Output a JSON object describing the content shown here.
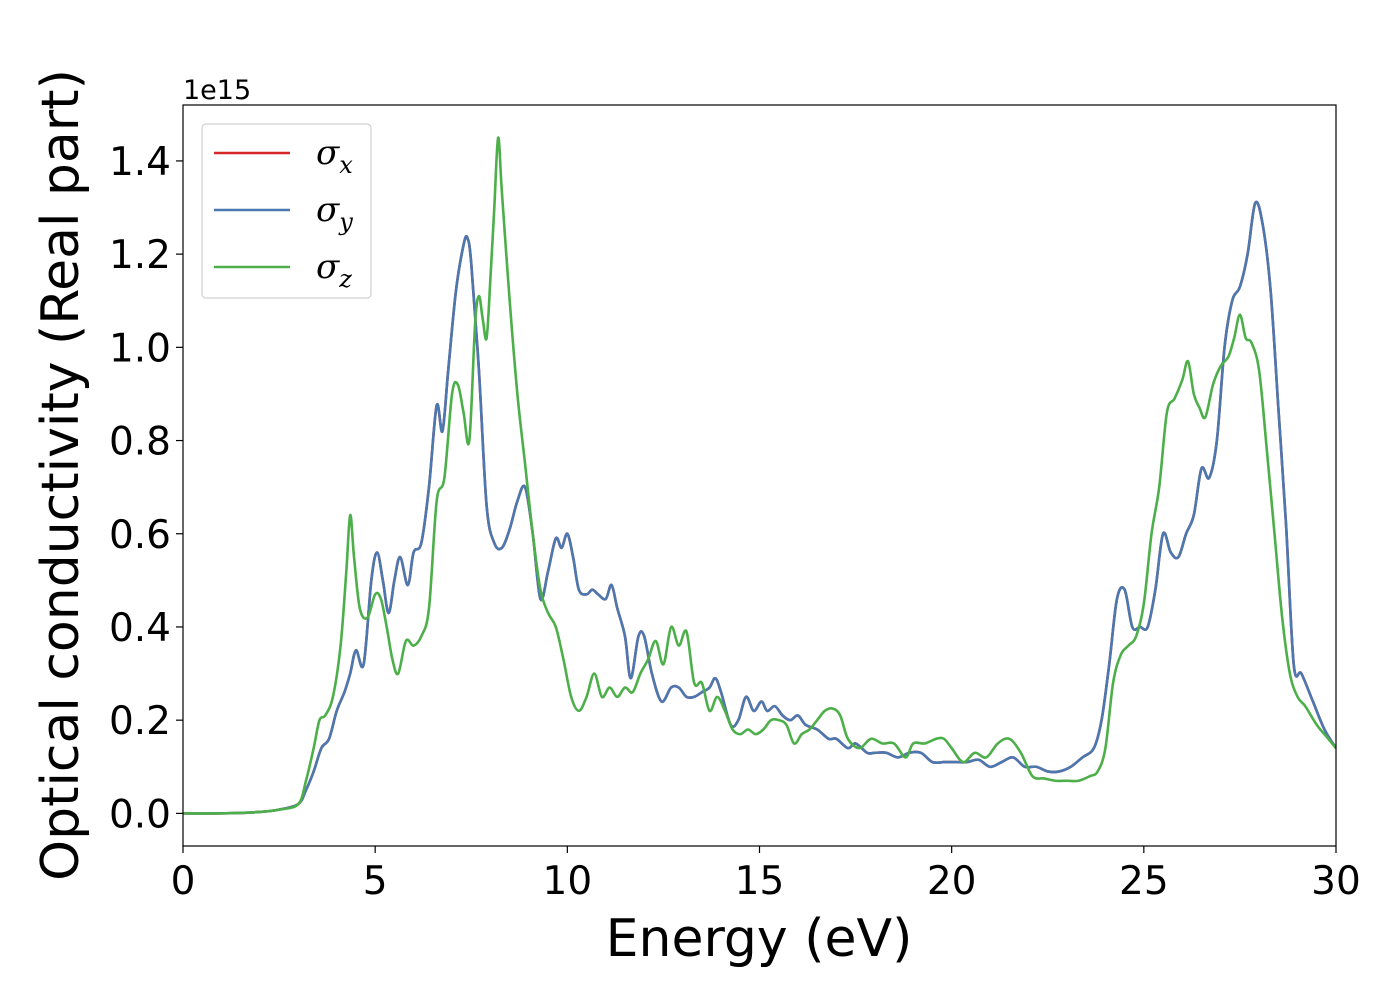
{
  "chart_data": {
    "type": "line",
    "xlabel": "Energy (eV)",
    "ylabel": "Optical conductivity (Real part)",
    "y_offset_text": "1e15",
    "xlim": [
      0,
      30
    ],
    "ylim": [
      -0.07,
      1.52
    ],
    "x_ticks": [
      0,
      5,
      10,
      15,
      20,
      25,
      30
    ],
    "x_tick_labels": [
      "0",
      "5",
      "10",
      "15",
      "20",
      "25",
      "30"
    ],
    "y_ticks": [
      0.0,
      0.2,
      0.4,
      0.6,
      0.8,
      1.0,
      1.2,
      1.4
    ],
    "y_tick_labels": [
      "0.0",
      "0.2",
      "0.4",
      "0.6",
      "0.8",
      "1.0",
      "1.2",
      "1.4"
    ],
    "legend_position": "upper-left",
    "grid": false,
    "series": [
      {
        "name": "σx",
        "legend_base": "σ",
        "legend_sub": "x",
        "color": "#d62728",
        "x": [
          0,
          1,
          2,
          2.5,
          3.0,
          3.2,
          3.4,
          3.6,
          3.8,
          4.0,
          4.2,
          4.35,
          4.5,
          4.7,
          4.9,
          5.05,
          5.2,
          5.35,
          5.5,
          5.65,
          5.85,
          6.0,
          6.2,
          6.4,
          6.6,
          6.75,
          6.9,
          7.1,
          7.3,
          7.4,
          7.5,
          7.7,
          7.9,
          8.1,
          8.3,
          8.5,
          8.7,
          8.9,
          9.1,
          9.3,
          9.5,
          9.7,
          9.85,
          10.0,
          10.15,
          10.3,
          10.5,
          10.65,
          10.8,
          11.0,
          11.15,
          11.3,
          11.5,
          11.65,
          11.85,
          12.0,
          12.2,
          12.45,
          12.7,
          12.9,
          13.1,
          13.3,
          13.5,
          13.7,
          13.85,
          14.0,
          14.25,
          14.45,
          14.65,
          14.85,
          15.05,
          15.2,
          15.4,
          15.6,
          15.8,
          16.0,
          16.2,
          16.5,
          16.8,
          17.0,
          17.3,
          17.5,
          17.8,
          18.0,
          18.3,
          18.6,
          18.9,
          19.2,
          19.5,
          19.8,
          20.1,
          20.4,
          20.7,
          21.0,
          21.3,
          21.6,
          21.9,
          22.2,
          22.5,
          22.8,
          23.1,
          23.4,
          23.7,
          23.9,
          24.1,
          24.3,
          24.5,
          24.7,
          24.9,
          25.1,
          25.3,
          25.5,
          25.7,
          25.9,
          26.1,
          26.3,
          26.5,
          26.7,
          26.9,
          27.1,
          27.3,
          27.5,
          27.7,
          27.9,
          28.1,
          28.3,
          28.5,
          28.7,
          28.9,
          29.1,
          29.4,
          29.7,
          30.0
        ],
        "y": [
          0.0,
          0.0,
          0.003,
          0.008,
          0.02,
          0.05,
          0.09,
          0.14,
          0.16,
          0.22,
          0.26,
          0.3,
          0.35,
          0.32,
          0.5,
          0.56,
          0.5,
          0.43,
          0.5,
          0.55,
          0.49,
          0.56,
          0.58,
          0.7,
          0.875,
          0.82,
          0.95,
          1.12,
          1.22,
          1.235,
          1.18,
          0.95,
          0.66,
          0.58,
          0.57,
          0.61,
          0.67,
          0.7,
          0.6,
          0.46,
          0.52,
          0.59,
          0.57,
          0.6,
          0.55,
          0.48,
          0.47,
          0.48,
          0.47,
          0.46,
          0.49,
          0.44,
          0.38,
          0.29,
          0.38,
          0.38,
          0.3,
          0.24,
          0.27,
          0.27,
          0.25,
          0.25,
          0.26,
          0.27,
          0.29,
          0.26,
          0.19,
          0.2,
          0.25,
          0.22,
          0.24,
          0.22,
          0.23,
          0.21,
          0.2,
          0.21,
          0.19,
          0.18,
          0.16,
          0.16,
          0.14,
          0.15,
          0.13,
          0.13,
          0.13,
          0.12,
          0.13,
          0.13,
          0.11,
          0.11,
          0.11,
          0.11,
          0.115,
          0.1,
          0.11,
          0.12,
          0.1,
          0.1,
          0.09,
          0.09,
          0.1,
          0.12,
          0.14,
          0.2,
          0.32,
          0.46,
          0.48,
          0.4,
          0.4,
          0.4,
          0.48,
          0.6,
          0.56,
          0.55,
          0.6,
          0.64,
          0.74,
          0.72,
          0.8,
          1.0,
          1.1,
          1.13,
          1.2,
          1.31,
          1.26,
          1.12,
          0.87,
          0.62,
          0.32,
          0.3,
          0.24,
          0.18,
          0.14
        ]
      },
      {
        "name": "σy",
        "legend_base": "σ",
        "legend_sub": "y",
        "color": "#4a78b0",
        "x": [
          0,
          1,
          2,
          2.5,
          3.0,
          3.2,
          3.4,
          3.6,
          3.8,
          4.0,
          4.2,
          4.35,
          4.5,
          4.7,
          4.9,
          5.05,
          5.2,
          5.35,
          5.5,
          5.65,
          5.85,
          6.0,
          6.2,
          6.4,
          6.6,
          6.75,
          6.9,
          7.1,
          7.3,
          7.4,
          7.5,
          7.7,
          7.9,
          8.1,
          8.3,
          8.5,
          8.7,
          8.9,
          9.1,
          9.3,
          9.5,
          9.7,
          9.85,
          10.0,
          10.15,
          10.3,
          10.5,
          10.65,
          10.8,
          11.0,
          11.15,
          11.3,
          11.5,
          11.65,
          11.85,
          12.0,
          12.2,
          12.45,
          12.7,
          12.9,
          13.1,
          13.3,
          13.5,
          13.7,
          13.85,
          14.0,
          14.25,
          14.45,
          14.65,
          14.85,
          15.05,
          15.2,
          15.4,
          15.6,
          15.8,
          16.0,
          16.2,
          16.5,
          16.8,
          17.0,
          17.3,
          17.5,
          17.8,
          18.0,
          18.3,
          18.6,
          18.9,
          19.2,
          19.5,
          19.8,
          20.1,
          20.4,
          20.7,
          21.0,
          21.3,
          21.6,
          21.9,
          22.2,
          22.5,
          22.8,
          23.1,
          23.4,
          23.7,
          23.9,
          24.1,
          24.3,
          24.5,
          24.7,
          24.9,
          25.1,
          25.3,
          25.5,
          25.7,
          25.9,
          26.1,
          26.3,
          26.5,
          26.7,
          26.9,
          27.1,
          27.3,
          27.5,
          27.7,
          27.9,
          28.1,
          28.3,
          28.5,
          28.7,
          28.9,
          29.1,
          29.4,
          29.7,
          30.0
        ],
        "y": [
          0.0,
          0.0,
          0.003,
          0.008,
          0.02,
          0.05,
          0.09,
          0.14,
          0.16,
          0.22,
          0.26,
          0.3,
          0.35,
          0.32,
          0.5,
          0.56,
          0.5,
          0.43,
          0.5,
          0.55,
          0.49,
          0.56,
          0.58,
          0.7,
          0.875,
          0.82,
          0.95,
          1.12,
          1.22,
          1.235,
          1.18,
          0.95,
          0.66,
          0.58,
          0.57,
          0.61,
          0.67,
          0.7,
          0.6,
          0.46,
          0.52,
          0.59,
          0.57,
          0.6,
          0.55,
          0.48,
          0.47,
          0.48,
          0.47,
          0.46,
          0.49,
          0.44,
          0.38,
          0.29,
          0.38,
          0.38,
          0.3,
          0.24,
          0.27,
          0.27,
          0.25,
          0.25,
          0.26,
          0.27,
          0.29,
          0.26,
          0.19,
          0.2,
          0.25,
          0.22,
          0.24,
          0.22,
          0.23,
          0.21,
          0.2,
          0.21,
          0.19,
          0.18,
          0.16,
          0.16,
          0.14,
          0.15,
          0.13,
          0.13,
          0.13,
          0.12,
          0.13,
          0.13,
          0.11,
          0.11,
          0.11,
          0.11,
          0.115,
          0.1,
          0.11,
          0.12,
          0.1,
          0.1,
          0.09,
          0.09,
          0.1,
          0.12,
          0.14,
          0.2,
          0.32,
          0.46,
          0.48,
          0.4,
          0.4,
          0.4,
          0.48,
          0.6,
          0.56,
          0.55,
          0.6,
          0.64,
          0.74,
          0.72,
          0.8,
          1.0,
          1.1,
          1.13,
          1.2,
          1.31,
          1.26,
          1.12,
          0.87,
          0.62,
          0.32,
          0.3,
          0.24,
          0.18,
          0.14
        ]
      },
      {
        "name": "σz",
        "legend_base": "σ",
        "legend_sub": "z",
        "color": "#4daf4a",
        "x": [
          0,
          1,
          2,
          2.5,
          3.0,
          3.2,
          3.4,
          3.55,
          3.7,
          3.9,
          4.1,
          4.25,
          4.35,
          4.45,
          4.6,
          4.8,
          5.0,
          5.15,
          5.3,
          5.45,
          5.6,
          5.8,
          6.0,
          6.2,
          6.4,
          6.6,
          6.8,
          7.0,
          7.15,
          7.3,
          7.45,
          7.6,
          7.7,
          7.8,
          7.9,
          8.0,
          8.1,
          8.2,
          8.3,
          8.5,
          8.7,
          8.9,
          9.1,
          9.3,
          9.5,
          9.7,
          9.9,
          10.1,
          10.3,
          10.5,
          10.7,
          10.9,
          11.1,
          11.3,
          11.5,
          11.7,
          11.9,
          12.1,
          12.3,
          12.5,
          12.7,
          12.9,
          13.1,
          13.3,
          13.5,
          13.7,
          13.9,
          14.1,
          14.3,
          14.5,
          14.7,
          14.9,
          15.1,
          15.3,
          15.5,
          15.7,
          15.9,
          16.1,
          16.3,
          16.5,
          16.7,
          16.9,
          17.1,
          17.3,
          17.6,
          17.9,
          18.2,
          18.5,
          18.8,
          19.0,
          19.3,
          19.6,
          19.8,
          20.0,
          20.3,
          20.6,
          20.9,
          21.2,
          21.5,
          21.8,
          22.1,
          22.4,
          22.7,
          23.0,
          23.3,
          23.6,
          23.8,
          24.0,
          24.2,
          24.4,
          24.6,
          24.8,
          25.0,
          25.2,
          25.4,
          25.6,
          25.8,
          26.0,
          26.15,
          26.3,
          26.45,
          26.6,
          26.8,
          27.0,
          27.2,
          27.35,
          27.5,
          27.65,
          27.8,
          28.0,
          28.2,
          28.4,
          28.6,
          28.8,
          29.0,
          29.2,
          29.5,
          29.8,
          30.0
        ],
        "y": [
          0.0,
          0.0,
          0.003,
          0.008,
          0.02,
          0.07,
          0.14,
          0.2,
          0.21,
          0.25,
          0.36,
          0.52,
          0.64,
          0.55,
          0.44,
          0.42,
          0.47,
          0.46,
          0.4,
          0.33,
          0.3,
          0.37,
          0.36,
          0.38,
          0.44,
          0.67,
          0.72,
          0.9,
          0.92,
          0.86,
          0.8,
          1.05,
          1.11,
          1.06,
          1.02,
          1.15,
          1.3,
          1.45,
          1.33,
          1.1,
          0.9,
          0.75,
          0.6,
          0.48,
          0.43,
          0.4,
          0.33,
          0.25,
          0.22,
          0.25,
          0.3,
          0.25,
          0.27,
          0.25,
          0.27,
          0.26,
          0.3,
          0.33,
          0.37,
          0.32,
          0.4,
          0.36,
          0.39,
          0.28,
          0.28,
          0.22,
          0.25,
          0.22,
          0.18,
          0.17,
          0.18,
          0.17,
          0.18,
          0.2,
          0.2,
          0.19,
          0.15,
          0.17,
          0.18,
          0.2,
          0.22,
          0.225,
          0.21,
          0.16,
          0.14,
          0.16,
          0.15,
          0.15,
          0.12,
          0.15,
          0.15,
          0.16,
          0.16,
          0.14,
          0.11,
          0.13,
          0.12,
          0.15,
          0.16,
          0.13,
          0.08,
          0.075,
          0.07,
          0.07,
          0.07,
          0.08,
          0.09,
          0.14,
          0.28,
          0.34,
          0.36,
          0.38,
          0.45,
          0.6,
          0.7,
          0.86,
          0.89,
          0.93,
          0.97,
          0.9,
          0.87,
          0.85,
          0.92,
          0.96,
          0.98,
          1.02,
          1.07,
          1.02,
          1.01,
          0.95,
          0.78,
          0.6,
          0.42,
          0.3,
          0.25,
          0.23,
          0.19,
          0.16,
          0.14
        ]
      }
    ]
  }
}
